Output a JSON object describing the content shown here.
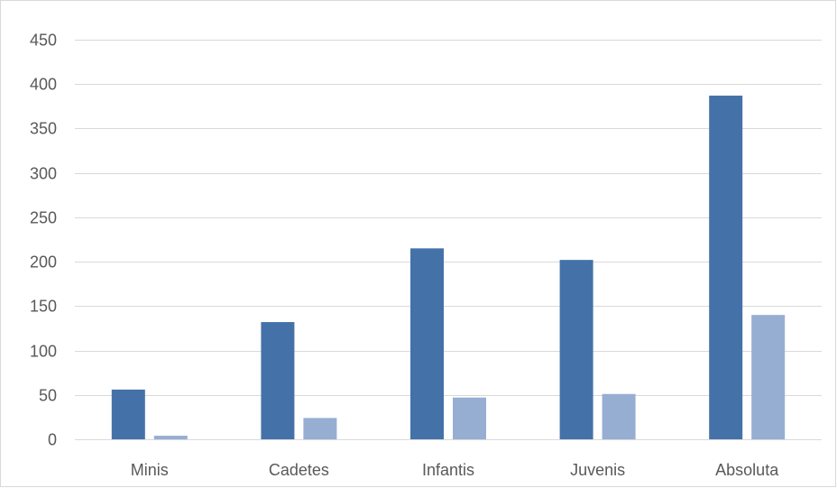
{
  "chart_data": {
    "type": "bar",
    "title": "",
    "xlabel": "",
    "ylabel": "",
    "categories": [
      "Minis",
      "Cadetes",
      "Infantis",
      "Juvenis",
      "Absoluta"
    ],
    "series": [
      {
        "values": [
          56,
          132,
          215,
          202,
          387
        ],
        "color": "#4472a8"
      },
      {
        "values": [
          4,
          24,
          47,
          51,
          140
        ],
        "color": "#97aed3"
      }
    ],
    "ylim": [
      0,
      450
    ],
    "yticks": [
      0,
      50,
      100,
      150,
      200,
      250,
      300,
      350,
      400,
      450
    ],
    "grid": true,
    "legend": "none"
  }
}
